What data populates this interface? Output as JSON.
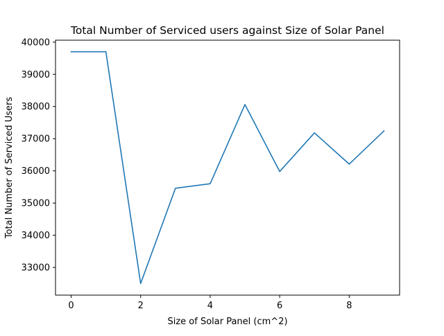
{
  "chart_data": {
    "type": "line",
    "title": "Total Number of Serviced users against Size of Solar Panel",
    "xlabel": "Size of Solar Panel (cm^2)",
    "ylabel": "Total Number of Serviced Users",
    "x": [
      0,
      1,
      2,
      3,
      4,
      5,
      6,
      7,
      8,
      9
    ],
    "series": [
      {
        "values": [
          39700,
          39700,
          32500,
          35460,
          35600,
          38060,
          35980,
          37180,
          36210,
          37240
        ],
        "color": "#1f77b4"
      }
    ],
    "xlim": [
      -0.45,
      9.45
    ],
    "ylim": [
      32140,
      40060
    ],
    "xticks": [
      0,
      2,
      4,
      6,
      8
    ],
    "xtick_labels": [
      "0",
      "2",
      "4",
      "6",
      "8"
    ],
    "yticks": [
      33000,
      34000,
      35000,
      36000,
      37000,
      38000,
      39000,
      40000
    ],
    "ytick_labels": [
      "33000",
      "34000",
      "35000",
      "36000",
      "37000",
      "38000",
      "39000",
      "40000"
    ],
    "grid": false,
    "legend": "none"
  }
}
